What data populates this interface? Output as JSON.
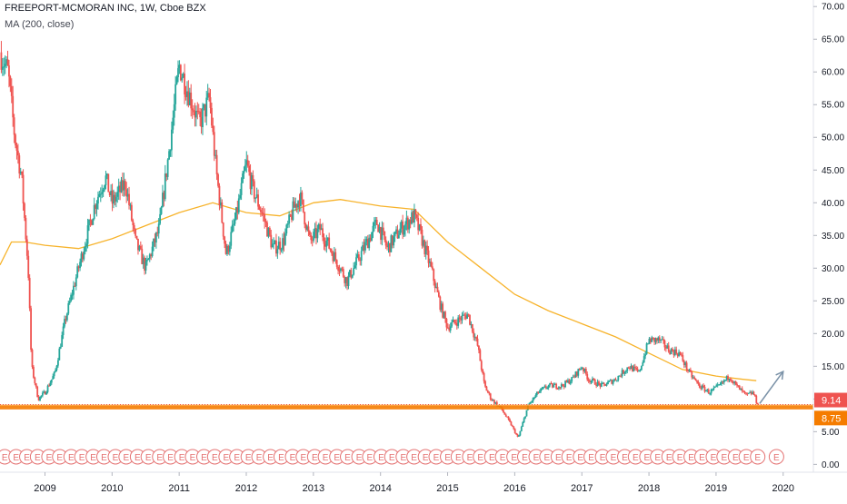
{
  "header": {
    "title": "FREEPORT-MCMORAN INC, 1W, Cboe BZX",
    "indicator": "MA (200, close)"
  },
  "colors": {
    "up": "#26a69a",
    "down": "#ef5350",
    "ma": "#f7b32b",
    "support": "#f57c00",
    "price_badge": "#ef5350",
    "support_badge": "#f57c00",
    "arrow": "#7b92a8",
    "earnings": "#e57373"
  },
  "chart_data": {
    "type": "candlestick",
    "timeframe": "1W",
    "x_range": [
      2008.33,
      2020.45
    ],
    "y_range": [
      -1.2,
      71.0
    ],
    "x_ticks": [
      "2009",
      "2010",
      "2011",
      "2012",
      "2013",
      "2014",
      "2015",
      "2016",
      "2017",
      "2018",
      "2019",
      "2020"
    ],
    "y_ticks": [
      "70.00",
      "65.00",
      "60.00",
      "55.00",
      "50.00",
      "45.00",
      "40.00",
      "35.00",
      "30.00",
      "25.00",
      "20.00",
      "15.00",
      "10.00",
      "5.00",
      "0.00"
    ],
    "last_price": "9.14",
    "support_level": "8.75",
    "support_value": 8.75,
    "last_value": 9.14,
    "price_path": [
      [
        2008.33,
        63.0
      ],
      [
        2008.45,
        60.0
      ],
      [
        2008.55,
        50.0
      ],
      [
        2008.65,
        44.0
      ],
      [
        2008.75,
        30.0
      ],
      [
        2008.8,
        15.0
      ],
      [
        2008.9,
        10.0
      ],
      [
        2009.0,
        11.0
      ],
      [
        2009.15,
        14.0
      ],
      [
        2009.3,
        22.0
      ],
      [
        2009.45,
        28.0
      ],
      [
        2009.6,
        34.0
      ],
      [
        2009.75,
        40.0
      ],
      [
        2009.9,
        44.0
      ],
      [
        2010.0,
        40.0
      ],
      [
        2010.2,
        43.0
      ],
      [
        2010.35,
        34.0
      ],
      [
        2010.5,
        30.0
      ],
      [
        2010.7,
        36.0
      ],
      [
        2010.85,
        48.0
      ],
      [
        2011.0,
        61.0
      ],
      [
        2011.1,
        58.0
      ],
      [
        2011.3,
        52.0
      ],
      [
        2011.45,
        56.0
      ],
      [
        2011.55,
        45.0
      ],
      [
        2011.7,
        32.0
      ],
      [
        2011.85,
        38.0
      ],
      [
        2012.0,
        46.0
      ],
      [
        2012.1,
        42.0
      ],
      [
        2012.25,
        38.0
      ],
      [
        2012.4,
        33.0
      ],
      [
        2012.55,
        34.0
      ],
      [
        2012.7,
        39.0
      ],
      [
        2012.8,
        41.0
      ],
      [
        2012.95,
        34.0
      ],
      [
        2013.1,
        36.0
      ],
      [
        2013.3,
        32.0
      ],
      [
        2013.5,
        28.0
      ],
      [
        2013.65,
        31.0
      ],
      [
        2013.8,
        34.0
      ],
      [
        2013.95,
        37.0
      ],
      [
        2014.1,
        33.0
      ],
      [
        2014.3,
        36.0
      ],
      [
        2014.5,
        38.0
      ],
      [
        2014.6,
        35.0
      ],
      [
        2014.75,
        30.0
      ],
      [
        2014.9,
        24.0
      ],
      [
        2015.0,
        21.0
      ],
      [
        2015.15,
        22.0
      ],
      [
        2015.3,
        23.0
      ],
      [
        2015.45,
        18.0
      ],
      [
        2015.55,
        12.0
      ],
      [
        2015.65,
        10.0
      ],
      [
        2015.8,
        8.5
      ],
      [
        2015.95,
        6.0
      ],
      [
        2016.05,
        4.0
      ],
      [
        2016.2,
        9.0
      ],
      [
        2016.35,
        11.0
      ],
      [
        2016.5,
        12.0
      ],
      [
        2016.7,
        12.0
      ],
      [
        2016.85,
        13.0
      ],
      [
        2017.0,
        15.0
      ],
      [
        2017.1,
        13.0
      ],
      [
        2017.3,
        12.0
      ],
      [
        2017.5,
        13.0
      ],
      [
        2017.7,
        15.0
      ],
      [
        2017.85,
        14.0
      ],
      [
        2018.0,
        19.0
      ],
      [
        2018.15,
        19.0
      ],
      [
        2018.3,
        17.5
      ],
      [
        2018.45,
        17.0
      ],
      [
        2018.6,
        14.0
      ],
      [
        2018.75,
        12.0
      ],
      [
        2018.9,
        11.0
      ],
      [
        2019.05,
        12.0
      ],
      [
        2019.2,
        13.5
      ],
      [
        2019.3,
        12.0
      ],
      [
        2019.45,
        10.5
      ],
      [
        2019.55,
        11.0
      ],
      [
        2019.62,
        9.14
      ]
    ],
    "ma_200": [
      [
        2008.33,
        30.5
      ],
      [
        2008.5,
        34.0
      ],
      [
        2008.7,
        34.0
      ],
      [
        2009.0,
        33.5
      ],
      [
        2009.5,
        33.0
      ],
      [
        2010.0,
        34.5
      ],
      [
        2010.5,
        36.5
      ],
      [
        2011.0,
        38.5
      ],
      [
        2011.5,
        40.0
      ],
      [
        2012.0,
        38.5
      ],
      [
        2012.5,
        38.0
      ],
      [
        2013.0,
        40.0
      ],
      [
        2013.4,
        40.5
      ],
      [
        2014.0,
        39.5
      ],
      [
        2014.5,
        39.0
      ],
      [
        2015.0,
        34.0
      ],
      [
        2015.5,
        30.0
      ],
      [
        2016.0,
        26.0
      ],
      [
        2016.5,
        23.5
      ],
      [
        2017.0,
        21.5
      ],
      [
        2017.5,
        19.5
      ],
      [
        2018.0,
        17.0
      ],
      [
        2018.5,
        14.5
      ],
      [
        2019.0,
        13.5
      ],
      [
        2019.4,
        13.0
      ],
      [
        2019.6,
        12.8
      ]
    ],
    "arrow": {
      "from": [
        2019.65,
        9.3
      ],
      "to": [
        2020.0,
        14.2
      ]
    },
    "earnings_events": [
      2008.4,
      2008.57,
      2008.73,
      2008.89,
      2009.06,
      2009.22,
      2009.39,
      2009.55,
      2009.72,
      2009.88,
      2010.05,
      2010.21,
      2010.38,
      2010.54,
      2010.71,
      2010.87,
      2011.04,
      2011.2,
      2011.37,
      2011.53,
      2011.7,
      2011.86,
      2012.03,
      2012.19,
      2012.36,
      2012.52,
      2012.69,
      2012.85,
      2013.02,
      2013.18,
      2013.35,
      2013.51,
      2013.68,
      2013.84,
      2014.01,
      2014.17,
      2014.34,
      2014.5,
      2014.67,
      2014.83,
      2015.0,
      2015.16,
      2015.33,
      2015.49,
      2015.66,
      2015.82,
      2015.99,
      2016.15,
      2016.32,
      2016.48,
      2016.65,
      2016.81,
      2016.98,
      2017.14,
      2017.31,
      2017.47,
      2017.64,
      2017.8,
      2017.97,
      2018.13,
      2018.3,
      2018.46,
      2018.63,
      2018.79,
      2018.96,
      2019.12,
      2019.29,
      2019.45,
      2019.62,
      2019.9
    ],
    "earnings_label": "E",
    "grid": false
  }
}
